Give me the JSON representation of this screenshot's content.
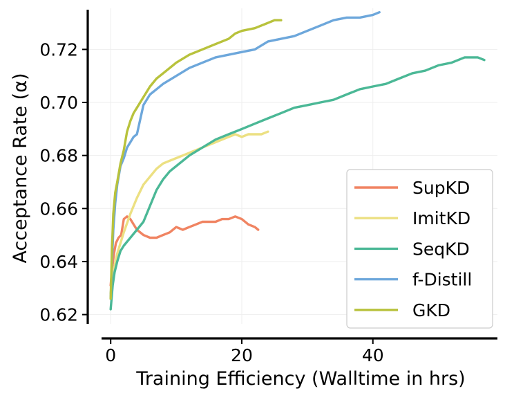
{
  "chart_data": {
    "type": "line",
    "xlabel": "Training Efficiency (Walltime in hrs)",
    "ylabel": "Acceptance Rate (α)",
    "xlim": [
      -3.5,
      59
    ],
    "ylim": [
      0.6165,
      0.7355
    ],
    "x_ticks": [
      0,
      20,
      40
    ],
    "y_ticks": [
      0.62,
      0.64,
      0.66,
      0.68,
      0.7,
      0.72
    ],
    "x_tick_labels": [
      "0",
      "20",
      "40"
    ],
    "y_tick_labels": [
      "0.62",
      "0.64",
      "0.66",
      "0.68",
      "0.70",
      "0.72"
    ],
    "grid": true,
    "legend_position": "lower right",
    "series": [
      {
        "name": "SupKD",
        "color": "#f08462",
        "x": [
          0,
          0.2,
          0.5,
          0.8,
          1.2,
          1.6,
          2.0,
          2.5,
          3.0,
          3.5,
          4.0,
          5.0,
          6.0,
          7.0,
          8.0,
          9.0,
          10.0,
          11.0,
          12.0,
          13.0,
          14.0,
          15.0,
          16.0,
          17.0,
          18.0,
          19.0,
          20.0,
          21.0,
          22.0,
          22.5
        ],
        "y": [
          0.631,
          0.637,
          0.643,
          0.647,
          0.649,
          0.65,
          0.656,
          0.657,
          0.656,
          0.654,
          0.652,
          0.65,
          0.649,
          0.649,
          0.65,
          0.651,
          0.653,
          0.652,
          0.653,
          0.654,
          0.655,
          0.655,
          0.655,
          0.656,
          0.656,
          0.657,
          0.656,
          0.654,
          0.653,
          0.652
        ]
      },
      {
        "name": "ImitKD",
        "color": "#ece082",
        "x": [
          0,
          0.5,
          1.0,
          2.0,
          3.0,
          4.0,
          5.0,
          6.0,
          7.0,
          8.0,
          9.0,
          10.0,
          11.0,
          12.0,
          13.0,
          14.0,
          15.0,
          16.0,
          17.0,
          18.0,
          19.0,
          20.0,
          21.0,
          22.0,
          23.0,
          24.0
        ],
        "y": [
          0.628,
          0.637,
          0.643,
          0.651,
          0.658,
          0.664,
          0.669,
          0.672,
          0.675,
          0.677,
          0.678,
          0.679,
          0.68,
          0.681,
          0.682,
          0.683,
          0.684,
          0.685,
          0.686,
          0.687,
          0.688,
          0.687,
          0.688,
          0.688,
          0.688,
          0.689
        ]
      },
      {
        "name": "SeqKD",
        "color": "#4bb896",
        "x": [
          0,
          0.3,
          0.6,
          1.0,
          1.5,
          2.0,
          3.0,
          4.0,
          5.0,
          6.0,
          7.0,
          8.0,
          9.0,
          10.0,
          12.0,
          14.0,
          16.0,
          18.0,
          20.0,
          22.0,
          24.0,
          26.0,
          28.0,
          30.0,
          32.0,
          34.0,
          36.0,
          38.0,
          40.0,
          42.0,
          44.0,
          46.0,
          48.0,
          50.0,
          52.0,
          54.0,
          55.0,
          56.0,
          57.0
        ],
        "y": [
          0.622,
          0.631,
          0.636,
          0.64,
          0.644,
          0.646,
          0.649,
          0.652,
          0.655,
          0.661,
          0.667,
          0.671,
          0.674,
          0.676,
          0.68,
          0.683,
          0.686,
          0.688,
          0.69,
          0.692,
          0.694,
          0.696,
          0.698,
          0.699,
          0.7,
          0.701,
          0.703,
          0.705,
          0.706,
          0.707,
          0.709,
          0.711,
          0.712,
          0.714,
          0.715,
          0.717,
          0.717,
          0.717,
          0.716
        ]
      },
      {
        "name": "f-Distill",
        "color": "#6da7db",
        "x": [
          0,
          0.2,
          0.4,
          0.7,
          1.0,
          1.5,
          2.0,
          2.5,
          3.0,
          3.5,
          4.0,
          5.0,
          6.0,
          7.0,
          8.0,
          10.0,
          12.0,
          14.0,
          16.0,
          18.0,
          20.0,
          22.0,
          24.0,
          26.0,
          28.0,
          30.0,
          32.0,
          34.0,
          36.0,
          38.0,
          40.0,
          41.0
        ],
        "y": [
          0.626,
          0.64,
          0.652,
          0.662,
          0.669,
          0.676,
          0.679,
          0.683,
          0.685,
          0.687,
          0.688,
          0.699,
          0.703,
          0.705,
          0.707,
          0.71,
          0.713,
          0.715,
          0.717,
          0.718,
          0.719,
          0.72,
          0.723,
          0.724,
          0.725,
          0.727,
          0.729,
          0.731,
          0.732,
          0.732,
          0.733,
          0.734
        ]
      },
      {
        "name": "GKD",
        "color": "#b8c23c",
        "x": [
          0,
          0.2,
          0.4,
          0.7,
          1.0,
          1.5,
          2.0,
          2.5,
          3.0,
          3.5,
          4.0,
          5.0,
          6.0,
          7.0,
          8.0,
          10.0,
          12.0,
          14.0,
          16.0,
          18.0,
          19.0,
          20.0,
          22.0,
          24.0,
          25.0,
          26.0
        ],
        "y": [
          0.626,
          0.645,
          0.658,
          0.666,
          0.67,
          0.677,
          0.682,
          0.689,
          0.693,
          0.696,
          0.698,
          0.702,
          0.706,
          0.709,
          0.711,
          0.715,
          0.718,
          0.72,
          0.722,
          0.724,
          0.726,
          0.727,
          0.728,
          0.73,
          0.731,
          0.731
        ]
      }
    ]
  }
}
